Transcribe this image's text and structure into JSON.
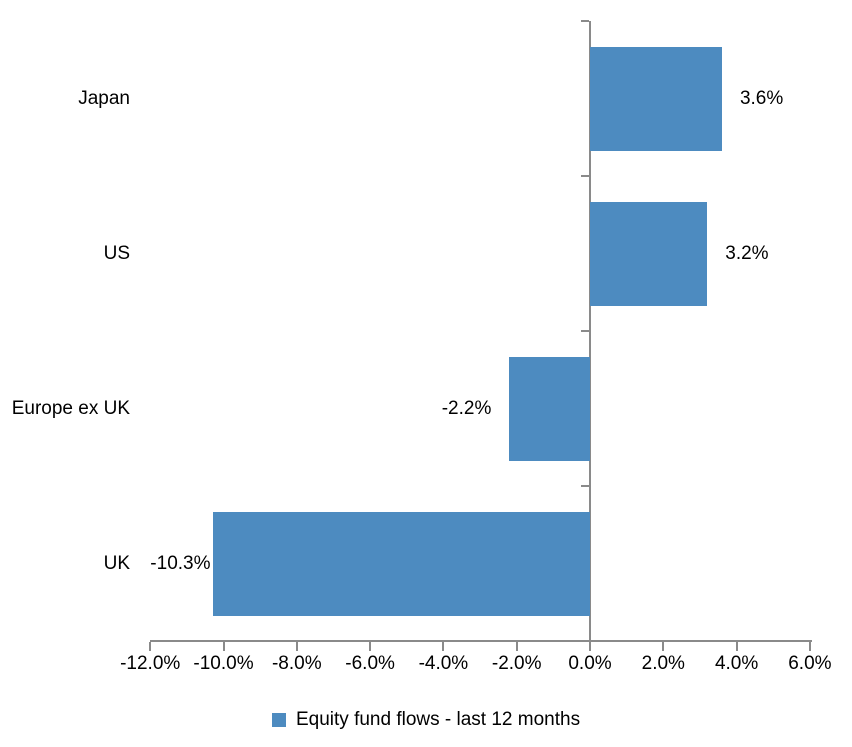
{
  "chart_data": {
    "type": "bar",
    "orientation": "horizontal",
    "title": "",
    "categories": [
      "Japan",
      "US",
      "Europe ex UK",
      "UK"
    ],
    "series": [
      {
        "name": "Equity fund flows - last 12 months",
        "values": [
          3.6,
          3.2,
          -2.2,
          -10.3
        ],
        "data_labels": [
          "3.6%",
          "3.2%",
          "-2.2%",
          "-10.3%"
        ],
        "color": "#4d8bc0"
      }
    ],
    "x_axis": {
      "min": -12,
      "max": 6,
      "tick_values": [
        -12,
        -10,
        -8,
        -6,
        -4,
        -2,
        0,
        2,
        4,
        6
      ],
      "tick_labels": [
        "-12.0%",
        "-10.0%",
        "-8.0%",
        "-6.0%",
        "-4.0%",
        "-2.0%",
        "0.0%",
        "2.0%",
        "4.0%",
        "6.0%"
      ]
    },
    "y_axis": {
      "zero_line": true
    },
    "grid": false,
    "legend": {
      "position": "bottom",
      "items": [
        {
          "label": "Equity fund flows - last 12 months",
          "color": "#4d8bc0"
        }
      ]
    },
    "colors": {
      "bar": "#4d8bc0",
      "axis": "#8a8a8a",
      "text": "#000000",
      "background": "#ffffff"
    }
  }
}
